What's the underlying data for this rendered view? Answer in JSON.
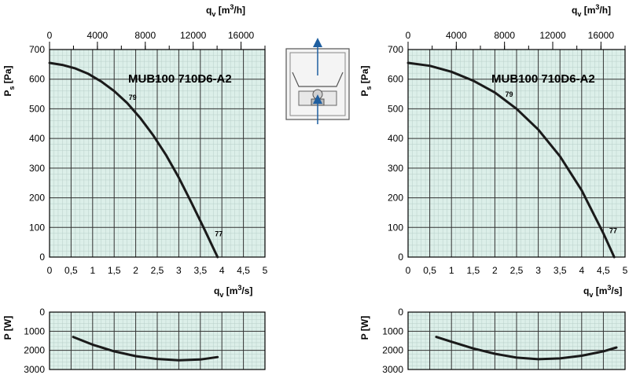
{
  "chart_data": [
    {
      "type": "line",
      "id": "left-pressure",
      "title": "MUB100 710D6-A2",
      "xlabel": "qv [m3/s]",
      "x2label": "qv [m3/h]",
      "ylabel": "Ps [Pa]",
      "xlim": [
        0,
        5
      ],
      "x2lim": [
        0,
        18000
      ],
      "ylim": [
        0,
        700
      ],
      "xticks": [
        "0",
        "0,5",
        "1",
        "1,5",
        "2",
        "2,5",
        "3",
        "3,5",
        "4",
        "4,5",
        "5"
      ],
      "x2ticks": [
        "0",
        "4000",
        "8000",
        "12000",
        "16000"
      ],
      "yticks": [
        "0",
        "100",
        "200",
        "300",
        "400",
        "500",
        "600",
        "700"
      ],
      "grid": true,
      "background": "#dcefe9",
      "series": [
        {
          "x": [
            0,
            0.3,
            0.6,
            0.9,
            1.2,
            1.5,
            1.8,
            2.1,
            2.4,
            2.7,
            3.0,
            3.3,
            3.6,
            3.9
          ],
          "y": [
            655,
            648,
            636,
            618,
            592,
            560,
            520,
            470,
            412,
            345,
            268,
            182,
            92,
            0
          ]
        }
      ],
      "annotations": [
        {
          "text": "79",
          "x": 1.8,
          "y": 520
        },
        {
          "text": "77",
          "x": 3.8,
          "y": 60
        }
      ]
    },
    {
      "type": "line",
      "id": "left-power",
      "ylabel": "P [W]",
      "xlim": [
        0,
        5
      ],
      "ylim": [
        3000,
        0
      ],
      "yticks": [
        "0",
        "1000",
        "2000",
        "3000"
      ],
      "grid": true,
      "background": "#dcefe9",
      "series": [
        {
          "x": [
            0.55,
            1.0,
            1.5,
            2.0,
            2.5,
            3.0,
            3.5,
            3.9
          ],
          "y": [
            1300,
            1700,
            2050,
            2300,
            2450,
            2520,
            2480,
            2350
          ]
        }
      ]
    },
    {
      "type": "line",
      "id": "right-pressure",
      "title": "MUB100 710D6-A2",
      "xlabel": "qv [m3/s]",
      "x2label": "qv [m3/h]",
      "ylabel": "Ps [Pa]",
      "xlim": [
        0,
        5
      ],
      "x2lim": [
        0,
        18000
      ],
      "ylim": [
        0,
        700
      ],
      "xticks": [
        "0",
        "0,5",
        "1",
        "1,5",
        "2",
        "2,5",
        "3",
        "3,5",
        "4",
        "4,5",
        "5"
      ],
      "x2ticks": [
        "0",
        "4000",
        "8000",
        "12000",
        "16000"
      ],
      "yticks": [
        "0",
        "100",
        "200",
        "300",
        "400",
        "500",
        "600",
        "700"
      ],
      "grid": true,
      "background": "#dcefe9",
      "series": [
        {
          "x": [
            0,
            0.5,
            1.0,
            1.5,
            2.0,
            2.5,
            3.0,
            3.5,
            4.0,
            4.5,
            4.75
          ],
          "y": [
            655,
            645,
            625,
            595,
            555,
            500,
            430,
            340,
            225,
            80,
            0
          ]
        }
      ],
      "annotations": [
        {
          "text": "79",
          "x": 2.2,
          "y": 530
        },
        {
          "text": "77",
          "x": 4.6,
          "y": 70
        }
      ]
    },
    {
      "type": "line",
      "id": "right-power",
      "ylabel": "P [W]",
      "xlim": [
        0,
        5
      ],
      "ylim": [
        3000,
        0
      ],
      "yticks": [
        "0",
        "1000",
        "2000",
        "3000"
      ],
      "grid": true,
      "background": "#dcefe9",
      "series": [
        {
          "x": [
            0.65,
            1.0,
            1.5,
            2.0,
            2.5,
            3.0,
            3.5,
            4.0,
            4.5,
            4.8
          ],
          "y": [
            1300,
            1550,
            1900,
            2180,
            2380,
            2460,
            2420,
            2280,
            2050,
            1850
          ]
        }
      ]
    }
  ],
  "diagram": {
    "name": "fan-airflow-diagram",
    "arrow_color": "#1f5fa0"
  }
}
